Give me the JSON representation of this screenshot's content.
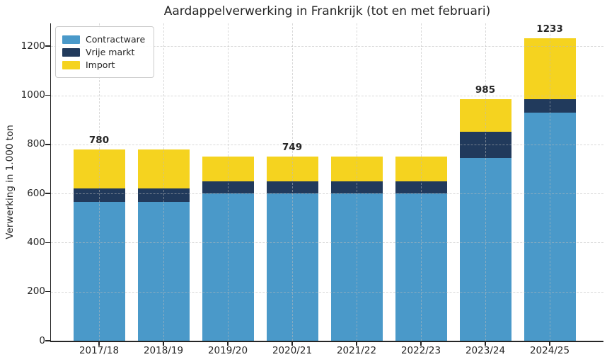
{
  "chart_data": {
    "type": "bar",
    "stacked": true,
    "title": "Aardappelverwerking in Frankrijk (tot en met februari)",
    "ylabel": "Verwerking in 1.000 ton",
    "xlabel": "",
    "categories": [
      "2017/18",
      "2018/19",
      "2019/20",
      "2020/21",
      "2021/22",
      "2022/23",
      "2023/24",
      "2024/25"
    ],
    "series": [
      {
        "name": "Contractware",
        "color": "#4A99C9",
        "values": [
          565,
          565,
          600,
          600,
          600,
          600,
          745,
          930
        ]
      },
      {
        "name": "Vrije markt",
        "color": "#213A5C",
        "values": [
          55,
          55,
          50,
          50,
          50,
          50,
          105,
          55
        ]
      },
      {
        "name": "Import",
        "color": "#F5D31F",
        "values": [
          160,
          160,
          99,
          99,
          99,
          99,
          135,
          248
        ]
      }
    ],
    "totals": [
      780,
      780,
      749,
      749,
      749,
      749,
      985,
      1233
    ],
    "bar_labels": [
      "780",
      "",
      "",
      "749",
      "",
      "",
      "985",
      "1233"
    ],
    "yticks": [
      0,
      200,
      400,
      600,
      800,
      1000,
      1200
    ],
    "ylim": [
      0,
      1293
    ],
    "grid": "dashed",
    "legend_position": "upper left",
    "axis_color": "#262626",
    "grid_color": "#c9c9c9",
    "background_color": "#ffffff"
  }
}
